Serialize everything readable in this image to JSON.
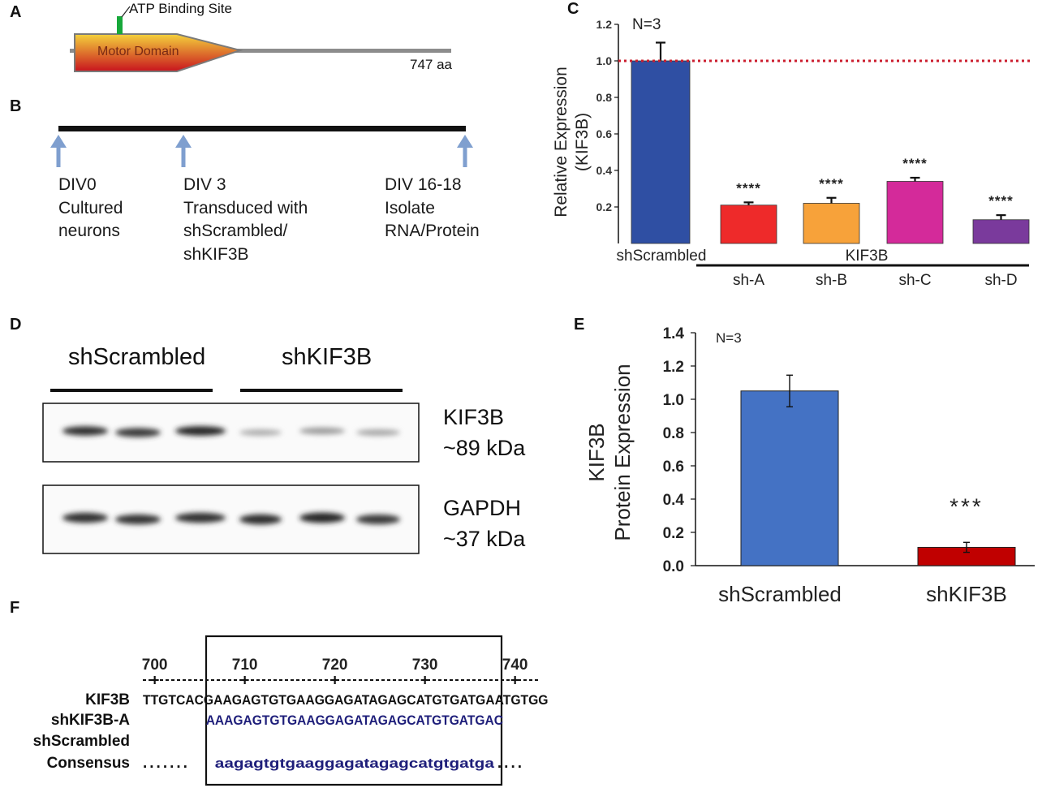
{
  "panels": {
    "a": "A",
    "b": "B",
    "c": "C",
    "d": "D",
    "e": "E",
    "f": "F"
  },
  "panel_a": {
    "atp_label": "ATP Binding Site",
    "domain_label": "Motor Domain",
    "length_label": "747 aa",
    "colors": {
      "domain_top": "#f4d23c",
      "domain_bottom": "#c8141e",
      "atp": "#17a83a",
      "backbone": "#8c8c8c"
    }
  },
  "panel_b": {
    "steps": [
      {
        "lines": [
          "DIV0",
          "Cultured",
          "neurons"
        ]
      },
      {
        "lines": [
          "DIV 3",
          "Transduced with",
          "shScrambled/",
          "shKIF3B"
        ]
      },
      {
        "lines": [
          "DIV 16-18",
          "Isolate",
          "RNA/Protein"
        ]
      }
    ],
    "arrow_color": "#7f9fcf"
  },
  "panel_d": {
    "group_labels": [
      "shScrambled",
      "shKIF3B"
    ],
    "blots": [
      {
        "name": "KIF3B",
        "size": "~89 kDa",
        "intensities": [
          0.9,
          0.85,
          0.95,
          0.25,
          0.35,
          0.28
        ]
      },
      {
        "name": "GAPDH",
        "size": "~37 kDa",
        "intensities": [
          0.9,
          0.88,
          0.9,
          0.92,
          0.95,
          0.85
        ]
      }
    ]
  },
  "panel_f": {
    "positions": [
      "700",
      "710",
      "720",
      "730",
      "740"
    ],
    "rows": [
      {
        "label": "KIF3B",
        "seq": "TTGTCACGAAGAGTGTGAAGGAGATAGAGCATGTGATGAATGTGG"
      },
      {
        "label": "shKIF3B-A",
        "seq": "AAAGAGTGTGAAGGAGATAGAGCATGTGATGAC"
      },
      {
        "label": "shScrambled",
        "seq": ""
      },
      {
        "label": "Consensus",
        "seq": "aagagtgtgaaggagatagagcatgtgatga"
      }
    ],
    "seq_color": "#1e1e7a"
  },
  "chart_data": [
    {
      "panel": "C",
      "type": "bar",
      "categories": [
        "shScrambled",
        "sh-A",
        "sh-B",
        "sh-C",
        "sh-D"
      ],
      "values": [
        1.0,
        0.21,
        0.22,
        0.34,
        0.13
      ],
      "errors": [
        0.1,
        0.015,
        0.03,
        0.02,
        0.025
      ],
      "significance": [
        "",
        "****",
        "****",
        "****",
        "****"
      ],
      "colors": [
        "#2f4fa3",
        "#ee2a2a",
        "#f7a23a",
        "#d42a9a",
        "#7a3a9c"
      ],
      "group_label": "KIF3B",
      "annotation": "N=3",
      "reference_line": 1.0,
      "reference_color": "#cc1e2e",
      "ylabel_lines": [
        "Relative Expression",
        "(KIF3B)"
      ],
      "xlabel": "",
      "yticks": [
        "0.2",
        "0.4",
        "0.6",
        "0.8",
        "1.0",
        "1.2"
      ],
      "ylim": [
        0,
        1.2
      ]
    },
    {
      "panel": "E",
      "type": "bar",
      "categories": [
        "shScrambled",
        "shKIF3B"
      ],
      "values": [
        1.05,
        0.11
      ],
      "errors": [
        0.095,
        0.03
      ],
      "significance": [
        "",
        "***"
      ],
      "colors": [
        "#4472c4",
        "#c00000"
      ],
      "annotation": "N=3",
      "ylabel_lines": [
        "KIF3B",
        "Protein Expression"
      ],
      "xlabel": "",
      "yticks": [
        "0.0",
        "0.2",
        "0.4",
        "0.6",
        "0.8",
        "1.0",
        "1.2",
        "1.4"
      ],
      "ylim": [
        0,
        1.4
      ]
    }
  ]
}
